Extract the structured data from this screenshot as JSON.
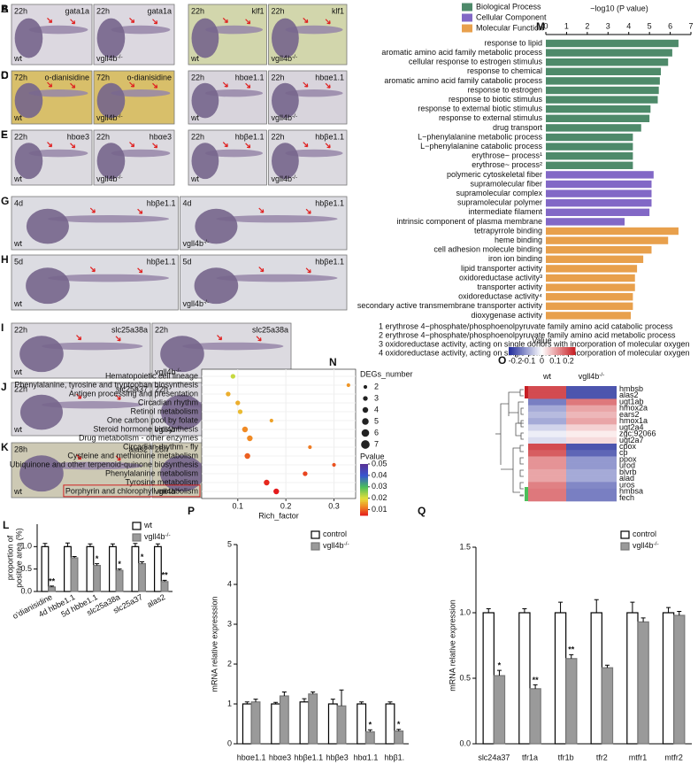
{
  "photos": [
    {
      "letter": "A",
      "background": "#dcd8e0",
      "images": [
        {
          "stage": "22h",
          "probe": "gata1a",
          "genotype": "wt"
        },
        {
          "stage": "22h",
          "probe": "gata1a",
          "genotype": "vgll4b",
          "sup": "-/-"
        }
      ]
    },
    {
      "letter": "B",
      "background": "#d2d6ac",
      "images": [
        {
          "stage": "22h",
          "probe": "klf1",
          "genotype": "wt"
        },
        {
          "stage": "22h",
          "probe": "klf1",
          "genotype": "vgll4b",
          "sup": "-/-"
        }
      ]
    },
    {
      "letter": "C",
      "background": "#d8bf6a",
      "images": [
        {
          "stage": "72h",
          "probe": "o-dianisidine",
          "genotype": "wt"
        },
        {
          "stage": "72h",
          "probe": "o-dianisidine",
          "genotype": "vgll4b",
          "sup": "-/-"
        }
      ]
    },
    {
      "letter": "D",
      "background": "#d8d4dc",
      "images": [
        {
          "stage": "22h",
          "probe": "hbαe1.1",
          "genotype": "wt"
        },
        {
          "stage": "22h",
          "probe": "hbαe1.1",
          "genotype": "vgll4b",
          "sup": "-/-"
        }
      ]
    },
    {
      "letter": "E",
      "background": "#dcdae0",
      "images": [
        {
          "stage": "22h",
          "probe": "hbαe3",
          "genotype": "wt"
        },
        {
          "stage": "22h",
          "probe": "hbαe3",
          "genotype": "vgll4b",
          "sup": "-/-"
        }
      ]
    },
    {
      "letter": "F",
      "background": "#dcdae0",
      "images": [
        {
          "stage": "22h",
          "probe": "hbβe1.1",
          "genotype": "wt"
        },
        {
          "stage": "22h",
          "probe": "hbβe1.1",
          "genotype": "vgll4b",
          "sup": "-/-"
        }
      ]
    },
    {
      "letter": "G",
      "background": "#dcdce2",
      "images": [
        {
          "stage": "4d",
          "probe": "hbβe1.1",
          "genotype": "wt"
        },
        {
          "stage": "4d",
          "probe": "hbβe1.1",
          "genotype": "vgll4b",
          "sup": "-/-"
        }
      ]
    },
    {
      "letter": "H",
      "background": "#dcdce2",
      "images": [
        {
          "stage": "5d",
          "probe": "hbβe1.1",
          "genotype": "wt"
        },
        {
          "stage": "5d",
          "probe": "hbβe1.1",
          "genotype": "vgll4b",
          "sup": "-/-"
        }
      ]
    },
    {
      "letter": "I",
      "background": "#dcdae0",
      "images": [
        {
          "stage": "22h",
          "probe": "slc25a38a",
          "genotype": "wt"
        },
        {
          "stage": "22h",
          "probe": "slc25a38a",
          "genotype": "vgll4b",
          "sup": "-/-"
        }
      ]
    },
    {
      "letter": "J",
      "background": "#dcdae0",
      "images": [
        {
          "stage": "22h",
          "probe": "slc25a37",
          "genotype": "wt"
        },
        {
          "stage": "22h",
          "probe": "slc25a37",
          "genotype": "vgll4b",
          "sup": "-/-"
        }
      ]
    },
    {
      "letter": "K",
      "background": "#cdc9b4",
      "images": [
        {
          "stage": "28h",
          "probe": "alas2",
          "genotype": "wt"
        },
        {
          "stage": "28h",
          "probe": "alas2",
          "genotype": "vgll4b",
          "sup": "-/-"
        }
      ]
    }
  ],
  "chart_data": [
    {
      "letter": "L",
      "type": "bar",
      "y_label": [
        "proportion of",
        "positive area (%)"
      ],
      "categories": [
        "o'dianisidine",
        "4d hbbe1.1",
        "5d hbbe1.1",
        "slc25a38a",
        "slc25a37",
        "alas2"
      ],
      "series": [
        {
          "name": "wt",
          "color": "#ffffff",
          "values": [
            1,
            1,
            1,
            1,
            1,
            1
          ],
          "errors": [
            0.07,
            0.08,
            0.06,
            0.06,
            0.07,
            0.06
          ]
        },
        {
          "name": "vgll4b",
          "sup": "-/-",
          "color": "#9a9a9a",
          "values": [
            0.1,
            0.75,
            0.58,
            0.47,
            0.62,
            0.22
          ],
          "errors": [
            0.02,
            0.03,
            0.04,
            0.03,
            0.04,
            0.03
          ]
        }
      ],
      "significance": [
        "**",
        null,
        "*",
        "*",
        "*",
        "**"
      ],
      "ylim": [
        0,
        1.5
      ],
      "yticks": [
        {
          "value": 0,
          "label": "0.0"
        },
        0.5,
        {
          "value": 1,
          "label": "1.0"
        }
      ]
    },
    {
      "letter": "M",
      "type": "barh",
      "x_label": "−log10 (P value)",
      "xlim": [
        0,
        7
      ],
      "xticks": [
        0,
        1,
        2,
        3,
        4,
        5,
        6,
        7
      ],
      "series": [
        {
          "name": "Biological Process",
          "color": "#4e8a6a",
          "categories": [
            "response to lipid",
            "aromatic amino acid family metabolic process",
            "cellular response to estrogen stimulus",
            "response to chemical",
            "aromatic amino acid family catabolic process",
            "response to estrogen",
            "response to biotic stimulus",
            "response to external biotic stimulus",
            "response to external stimulus",
            "drug transport",
            "L−phenylalanine metabolic process",
            "L−phenylalanine catabolic process",
            "erythrose~ process¹",
            "erythrose~ process²"
          ],
          "values": [
            6.4,
            6.1,
            5.9,
            5.55,
            5.5,
            5.45,
            5.4,
            5.05,
            5.0,
            4.6,
            4.2,
            4.2,
            4.2,
            4.2
          ]
        },
        {
          "name": "Cellular Component",
          "color": "#8268c6",
          "categories": [
            "polymeric cytoskeletal fiber",
            "supramolecular fiber",
            "supramolecular complex",
            "supramolecular polymer",
            "intermediate filament",
            "intrinsic component of plasma membrane"
          ],
          "values": [
            5.2,
            5.1,
            5.1,
            5.1,
            5.0,
            3.8
          ]
        },
        {
          "name": "Molecular Function",
          "color": "#e8a04c",
          "categories": [
            "tetrapyrrole binding",
            "heme binding",
            "cell adhesion molecule binding",
            "iron ion binding",
            "lipid transporter activity",
            "oxidoreductase activity³",
            "transporter activity",
            "oxidoreductase activity⁴",
            "secondary active transmembrane transporter activity",
            "dioxygenase activity"
          ],
          "values": [
            6.4,
            5.9,
            5.1,
            4.7,
            4.4,
            4.3,
            4.3,
            4.2,
            4.2,
            4.1
          ],
          "label_colors": [
            "#c0201e",
            "#c0201e",
            "#222222",
            "#c0201e",
            "#222222",
            "#2a34a8",
            "#222222",
            "#2a34a8",
            "#222222",
            "#2a34a8"
          ]
        }
      ],
      "notes": [
        "1 erythrose 4−phosphate/phosphoenolpyruvate family amino acid catabolic process",
        "2 erythrose 4−phosphate/phosphoenolpyruvate family amino acid metabolic process",
        "3 oxidoreductase activity, acting on single donors with incorporation of molecular oxygen",
        "4 oxidoreductase activity, acting on single donors with incorporation of molecular oxygen"
      ]
    },
    {
      "letter": "N",
      "type": "scatter",
      "x_label": "Rich_factor",
      "categories": [
        "Hematopoietic cell lineage",
        "Phenylalanine, tyrosine and tryptophan biosynthesis",
        "Antigen processing and presentation",
        "Circadian rhythm",
        "Retinol metabolism",
        "One carbon pool by folate",
        "Steroid hormone biosynthesis",
        "Drug metabolism - other enzymes",
        "Circadian rhythm - fly",
        "Cysteine and methionine metabolism",
        "Ubiquinone and other terpenoid-quinone biosynthesis",
        "Phenylalanine metabolism",
        "Tyrosine metabolism",
        "Porphyrin and chlorophyll metabolism"
      ],
      "x": [
        0.09,
        0.33,
        0.08,
        0.1,
        0.105,
        0.17,
        0.115,
        0.125,
        0.25,
        0.12,
        0.3,
        0.24,
        0.16,
        0.18
      ],
      "sizes": [
        3,
        2,
        3,
        3,
        3,
        2,
        4,
        4,
        2,
        4,
        2,
        3,
        4,
        4
      ],
      "pvalues": [
        0.022,
        0.014,
        0.016,
        0.016,
        0.017,
        0.015,
        0.013,
        0.013,
        0.012,
        0.01,
        0.009,
        0.008,
        0.006,
        0.005
      ],
      "boxed": [
        false,
        false,
        false,
        false,
        false,
        false,
        false,
        false,
        false,
        false,
        false,
        false,
        false,
        true
      ],
      "box_color": "#d02020",
      "xlim": [
        0.025,
        0.345
      ],
      "xticks": [
        0.1,
        0.2,
        0.3
      ],
      "size_title": "DEGs_number",
      "size_legend": [
        2,
        3,
        4,
        5,
        6,
        7
      ],
      "color_title": "Pvalue",
      "clim": [
        0.005,
        0.05
      ],
      "colorbar_ticks": [
        0.05,
        0.04,
        0.03,
        0.02,
        0.01
      ],
      "colorscale": [
        [
          0.005,
          "#e41a1c"
        ],
        [
          0.013,
          "#f08a24"
        ],
        [
          0.02,
          "#e6df3a"
        ],
        [
          0.03,
          "#4cbf5a"
        ],
        [
          0.04,
          "#3656d0"
        ],
        [
          0.05,
          "#5a3296"
        ]
      ]
    },
    {
      "letter": "O",
      "type": "heatmap",
      "color_title": "Value",
      "columns": [
        {
          "name": "wt"
        },
        {
          "name": "vgll4b",
          "sup": "-/-"
        }
      ],
      "rows": [
        "hmbsb",
        "alas2",
        "ugt1ab",
        "hmox2a",
        "ears2",
        "hmox1a",
        "ugt2a4",
        "zgc:92066",
        "ugt2a7",
        "cpox",
        "cp",
        "ppox",
        "urod",
        "blvrb",
        "alad",
        "uros",
        "hmbsa",
        "fech"
      ],
      "row_colors": [
        "#111111",
        "#d02020",
        "#111111",
        "#111111",
        "#111111",
        "#111111",
        "#111111",
        "#111111",
        "#111111",
        "#111111",
        "#111111",
        "#111111",
        "#111111",
        "#111111",
        "#111111",
        "#111111",
        "#111111",
        "#111111"
      ],
      "values": [
        [
          0.2,
          -0.2
        ],
        [
          0.2,
          -0.2
        ],
        [
          -0.15,
          0.15
        ],
        [
          -0.1,
          0.1
        ],
        [
          -0.08,
          0.08
        ],
        [
          -0.1,
          0.1
        ],
        [
          -0.05,
          0.05
        ],
        [
          -0.02,
          0.02
        ],
        [
          -0.04,
          0.04
        ],
        [
          0.2,
          -0.2
        ],
        [
          0.18,
          -0.18
        ],
        [
          0.12,
          -0.12
        ],
        [
          0.12,
          -0.12
        ],
        [
          0.1,
          -0.1
        ],
        [
          0.1,
          -0.1
        ],
        [
          0.14,
          -0.14
        ],
        [
          0.15,
          -0.15
        ],
        [
          0.15,
          -0.15
        ]
      ],
      "clim": [
        -0.25,
        0.25
      ],
      "colorbar_ticks": [
        -0.2,
        -0.1,
        0,
        0.1,
        0.2
      ],
      "colorscale": [
        [
          -0.25,
          "#1f2a9a"
        ],
        [
          0,
          "#ffffff"
        ],
        [
          0.25,
          "#c81e24"
        ]
      ]
    },
    {
      "letter": "P",
      "type": "bar",
      "y_label": "mRNA relative expresssion",
      "categories": [
        "hbαe1.1",
        "hbαe3",
        "hbβe1.1",
        "hbβe3",
        "hbα1.1",
        "hbβ1."
      ],
      "series": [
        {
          "name": "control",
          "color": "#ffffff",
          "values": [
            1,
            1,
            1.05,
            1,
            1,
            1
          ],
          "errors": [
            0.05,
            0.04,
            0.08,
            0.12,
            0.05,
            0.05
          ]
        },
        {
          "name": "vgll4b",
          "sup": "-/-",
          "color": "#9a9a9a",
          "values": [
            1.05,
            1.2,
            1.25,
            0.95,
            0.3,
            0.32
          ],
          "errors": [
            0.07,
            0.1,
            0.05,
            0.4,
            0.05,
            0.04
          ]
        }
      ],
      "significance": [
        null,
        null,
        null,
        null,
        "*",
        "*"
      ],
      "ylim": [
        0,
        5
      ],
      "yticks": [
        0,
        1,
        2,
        3,
        4,
        5
      ]
    },
    {
      "letter": "Q",
      "type": "bar",
      "y_label": "mRNA relative expression",
      "categories": [
        "slc24a37",
        "tfr1a",
        "tfr1b",
        "tfr2",
        "mtfr1",
        "mtfr2"
      ],
      "series": [
        {
          "name": "control",
          "color": "#ffffff",
          "values": [
            1,
            1,
            1,
            1,
            1,
            1
          ],
          "errors": [
            0.03,
            0.03,
            0.08,
            0.1,
            0.08,
            0.04
          ]
        },
        {
          "name": "vgll4b",
          "sup": "-/-",
          "color": "#9a9a9a",
          "values": [
            0.52,
            0.42,
            0.65,
            0.58,
            0.93,
            0.98
          ],
          "errors": [
            0.04,
            0.03,
            0.03,
            0.02,
            0.03,
            0.03
          ]
        }
      ],
      "significance": [
        "*",
        "**",
        "**",
        null,
        null,
        null
      ],
      "ylim": [
        0,
        1.5
      ],
      "yticks": [
        {
          "value": 0,
          "label": "0.0"
        },
        0.5,
        {
          "value": 1,
          "label": "1.0"
        },
        1.5
      ]
    }
  ]
}
